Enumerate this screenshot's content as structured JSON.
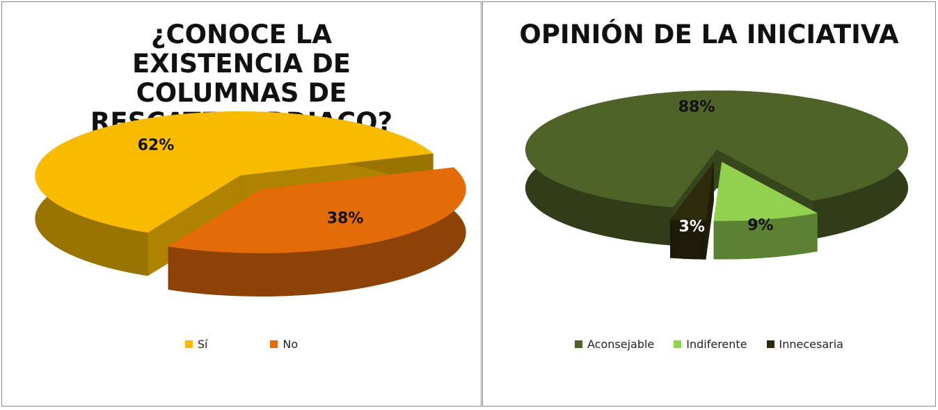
{
  "chart_data": [
    {
      "type": "pie",
      "title": "¿CONOCE LA EXISTENCIA DE COLUMNAS DE RESCATE CARDIACO?",
      "categories": [
        "Sí",
        "No"
      ],
      "values": [
        62,
        38
      ],
      "value_labels": [
        "62%",
        "38%"
      ],
      "colors": [
        "#f9bb00",
        "#e36c09"
      ],
      "legend": "bottom"
    },
    {
      "type": "pie",
      "title": "OPINIÓN DE LA INICIATIVA",
      "categories": [
        "Aconsejable",
        "Indiferente",
        "Innecesaria"
      ],
      "values": [
        88,
        9,
        3
      ],
      "value_labels": [
        "88%",
        "9%",
        "3%"
      ],
      "colors": [
        "#4f6228",
        "#92d050",
        "#2e2a0c"
      ],
      "legend": "bottom"
    }
  ]
}
